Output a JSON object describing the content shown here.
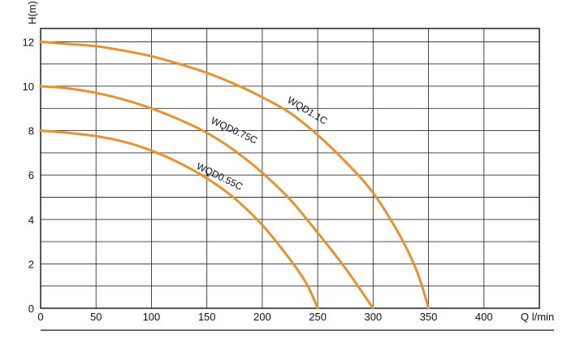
{
  "chart_data": {
    "type": "line",
    "xlabel": "Q l/min",
    "ylabel": "H(m)",
    "xlim": [
      0,
      450
    ],
    "ylim": [
      0,
      12.6
    ],
    "xticks": [
      0,
      50,
      100,
      150,
      200,
      250,
      300,
      350,
      400
    ],
    "yticks": [
      0,
      2,
      4,
      6,
      8,
      10,
      12
    ],
    "x_grid_step": 50,
    "y_grid_step": 1,
    "grid": true,
    "line_color": "#E8912F",
    "grid_color": "#333333",
    "series": [
      {
        "name": "WQD0.55C",
        "label_at": [
          140,
          6.3
        ],
        "label_angle": 26,
        "points": [
          [
            0,
            8.0
          ],
          [
            25,
            7.9
          ],
          [
            50,
            7.75
          ],
          [
            75,
            7.5
          ],
          [
            100,
            7.1
          ],
          [
            125,
            6.55
          ],
          [
            150,
            5.85
          ],
          [
            175,
            4.95
          ],
          [
            200,
            3.75
          ],
          [
            225,
            2.2
          ],
          [
            240,
            1.1
          ],
          [
            250,
            0
          ]
        ]
      },
      {
        "name": "WQD0.75C",
        "label_at": [
          153,
          8.35
        ],
        "label_angle": 25,
        "points": [
          [
            0,
            10.0
          ],
          [
            25,
            9.9
          ],
          [
            50,
            9.7
          ],
          [
            75,
            9.4
          ],
          [
            100,
            9.0
          ],
          [
            125,
            8.5
          ],
          [
            150,
            7.9
          ],
          [
            175,
            7.1
          ],
          [
            200,
            6.1
          ],
          [
            225,
            4.9
          ],
          [
            250,
            3.4
          ],
          [
            275,
            1.8
          ],
          [
            300,
            0
          ]
        ]
      },
      {
        "name": "WQD1.1C",
        "label_at": [
          222,
          9.3
        ],
        "label_angle": 31,
        "points": [
          [
            0,
            12.0
          ],
          [
            25,
            11.9
          ],
          [
            50,
            11.8
          ],
          [
            75,
            11.6
          ],
          [
            100,
            11.35
          ],
          [
            125,
            11.0
          ],
          [
            150,
            10.6
          ],
          [
            175,
            10.1
          ],
          [
            200,
            9.5
          ],
          [
            225,
            8.8
          ],
          [
            250,
            7.8
          ],
          [
            275,
            6.6
          ],
          [
            300,
            5.2
          ],
          [
            325,
            3.2
          ],
          [
            340,
            1.6
          ],
          [
            350,
            0
          ]
        ]
      }
    ]
  }
}
